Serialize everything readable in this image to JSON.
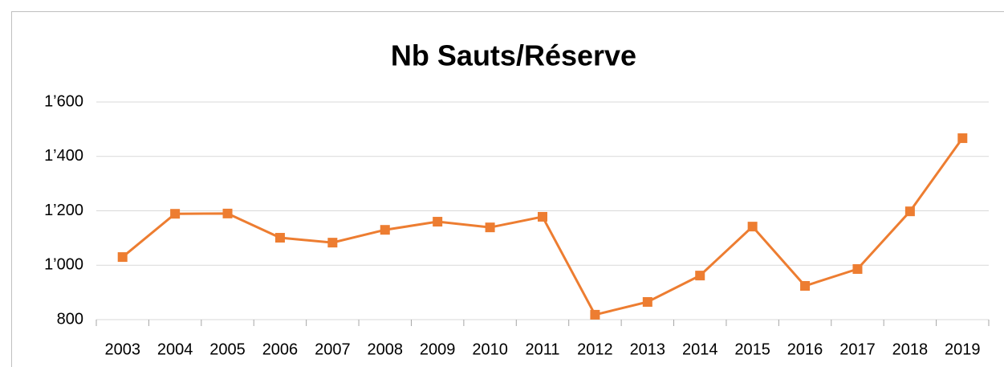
{
  "chart_data": {
    "type": "line",
    "title": "Nb Sauts/Réserve",
    "categories": [
      "2003",
      "2004",
      "2005",
      "2006",
      "2007",
      "2008",
      "2009",
      "2010",
      "2011",
      "2012",
      "2013",
      "2014",
      "2015",
      "2016",
      "2017",
      "2018",
      "2019"
    ],
    "values": [
      1030,
      1189,
      1190,
      1101,
      1083,
      1130,
      1160,
      1139,
      1178,
      818,
      865,
      962,
      1142,
      924,
      986,
      1198,
      1467
    ],
    "color": "#ED7D31",
    "ylim": [
      800,
      1600
    ],
    "yticks": [
      800,
      {
        "value": 1000,
        "label": "1’000"
      },
      {
        "value": 1200,
        "label": "1’200"
      },
      {
        "value": 1400,
        "label": "1’400"
      },
      {
        "value": 1600,
        "label": "1’600"
      }
    ],
    "grid": true
  }
}
